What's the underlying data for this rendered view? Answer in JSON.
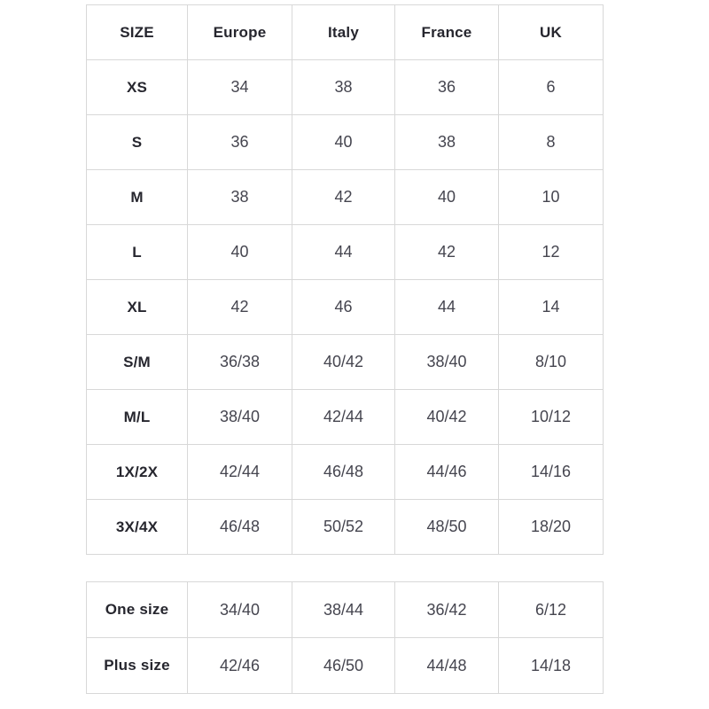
{
  "colors": {
    "background": "#ffffff",
    "border": "#d8d8d8",
    "header_text": "#26262e",
    "cell_text": "#45454f"
  },
  "main_table": {
    "headers": [
      "SIZE",
      "Europe",
      "Italy",
      "France",
      "UK"
    ],
    "rows": [
      {
        "label": "XS",
        "values": [
          "34",
          "38",
          "36",
          "6"
        ]
      },
      {
        "label": "S",
        "values": [
          "36",
          "40",
          "38",
          "8"
        ]
      },
      {
        "label": "M",
        "values": [
          "38",
          "42",
          "40",
          "10"
        ]
      },
      {
        "label": "L",
        "values": [
          "40",
          "44",
          "42",
          "12"
        ]
      },
      {
        "label": "XL",
        "values": [
          "42",
          "46",
          "44",
          "14"
        ]
      },
      {
        "label": "S/M",
        "values": [
          "36/38",
          "40/42",
          "38/40",
          "8/10"
        ]
      },
      {
        "label": "M/L",
        "values": [
          "38/40",
          "42/44",
          "40/42",
          "10/12"
        ]
      },
      {
        "label": "1X/2X",
        "values": [
          "42/44",
          "46/48",
          "44/46",
          "14/16"
        ]
      },
      {
        "label": "3X/4X",
        "values": [
          "46/48",
          "50/52",
          "48/50",
          "18/20"
        ]
      }
    ]
  },
  "extra_table": {
    "rows": [
      {
        "label": "One size",
        "values": [
          "34/40",
          "38/44",
          "36/42",
          "6/12"
        ]
      },
      {
        "label": "Plus size",
        "values": [
          "42/46",
          "46/50",
          "44/48",
          "14/18"
        ]
      }
    ]
  }
}
